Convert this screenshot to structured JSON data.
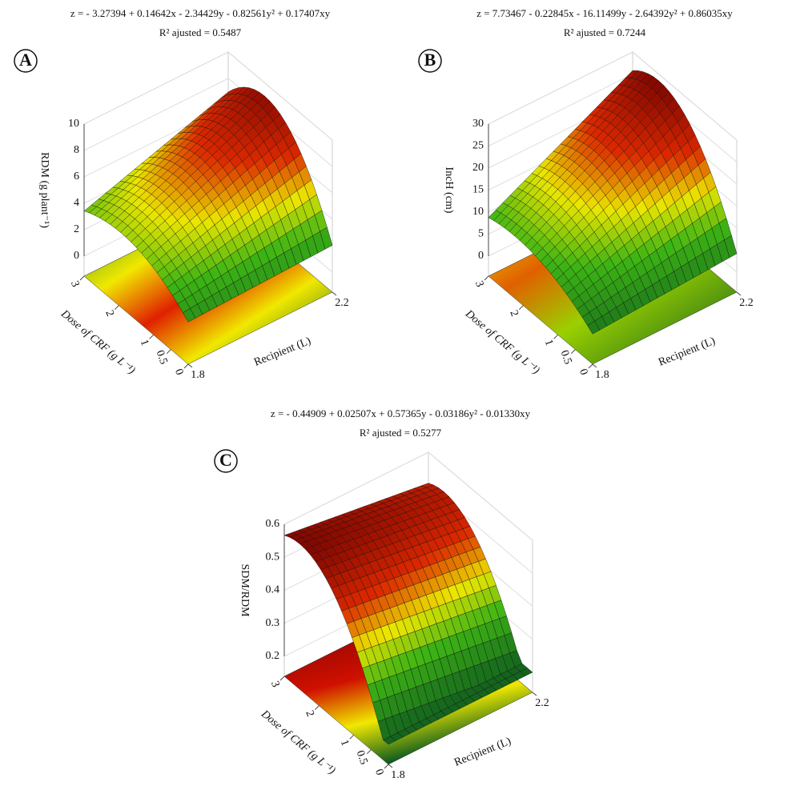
{
  "chart_data": [
    {
      "type": "surface3d",
      "label": "A",
      "title": "z = - 3.27394 + 0.14642x - 2.34429y - 0.82561y² + 0.17407xy",
      "subtitle": "R² ajusted = 0.5487",
      "zlabel": "RDM (g plant⁻¹)",
      "ylabel": "Dose of CRF (g L⁻¹)",
      "xlabel": "Recipient (L)",
      "xlim": [
        1.8,
        2.2
      ],
      "xticks": [
        1.8,
        2.2
      ],
      "ylim": [
        0,
        3
      ],
      "yticks": [
        0,
        0.5,
        1,
        2,
        3
      ],
      "zlim": [
        0,
        10
      ],
      "zticks": [
        0,
        2,
        4,
        6,
        8,
        10
      ]
    },
    {
      "type": "surface3d",
      "label": "B",
      "title": "z = 7.73467 - 0.22845x - 16.11499y - 2.64392y² + 0.86035xy",
      "subtitle": "R² ajusted = 0.7244",
      "zlabel": "IncH (cm)",
      "ylabel": "Dose of CRF (g L⁻¹)",
      "xlabel": "Recipient (L)",
      "xlim": [
        1.8,
        2.2
      ],
      "xticks": [
        1.8,
        2.2
      ],
      "ylim": [
        0,
        3
      ],
      "yticks": [
        0,
        0.5,
        1,
        2,
        3
      ],
      "zlim": [
        0,
        30
      ],
      "zticks": [
        0,
        5,
        10,
        15,
        20,
        25,
        30
      ]
    },
    {
      "type": "surface3d",
      "label": "C",
      "title": "z = - 0.44909 + 0.02507x + 0.57365y - 0.03186y² - 0.01330xy",
      "subtitle": "R² ajusted = 0.5277",
      "zlabel": "SDM/RDM",
      "ylabel": "Dose of CRF (g L⁻¹)",
      "xlabel": "Recipient (L)",
      "xlim": [
        1.8,
        2.2
      ],
      "xticks": [
        1.8,
        2.2
      ],
      "ylim": [
        0,
        3
      ],
      "yticks": [
        0,
        0.5,
        1,
        2,
        3
      ],
      "zlim": [
        0.2,
        0.6
      ],
      "zticks": [
        0.2,
        0.3,
        0.4,
        0.5,
        0.6
      ]
    }
  ]
}
